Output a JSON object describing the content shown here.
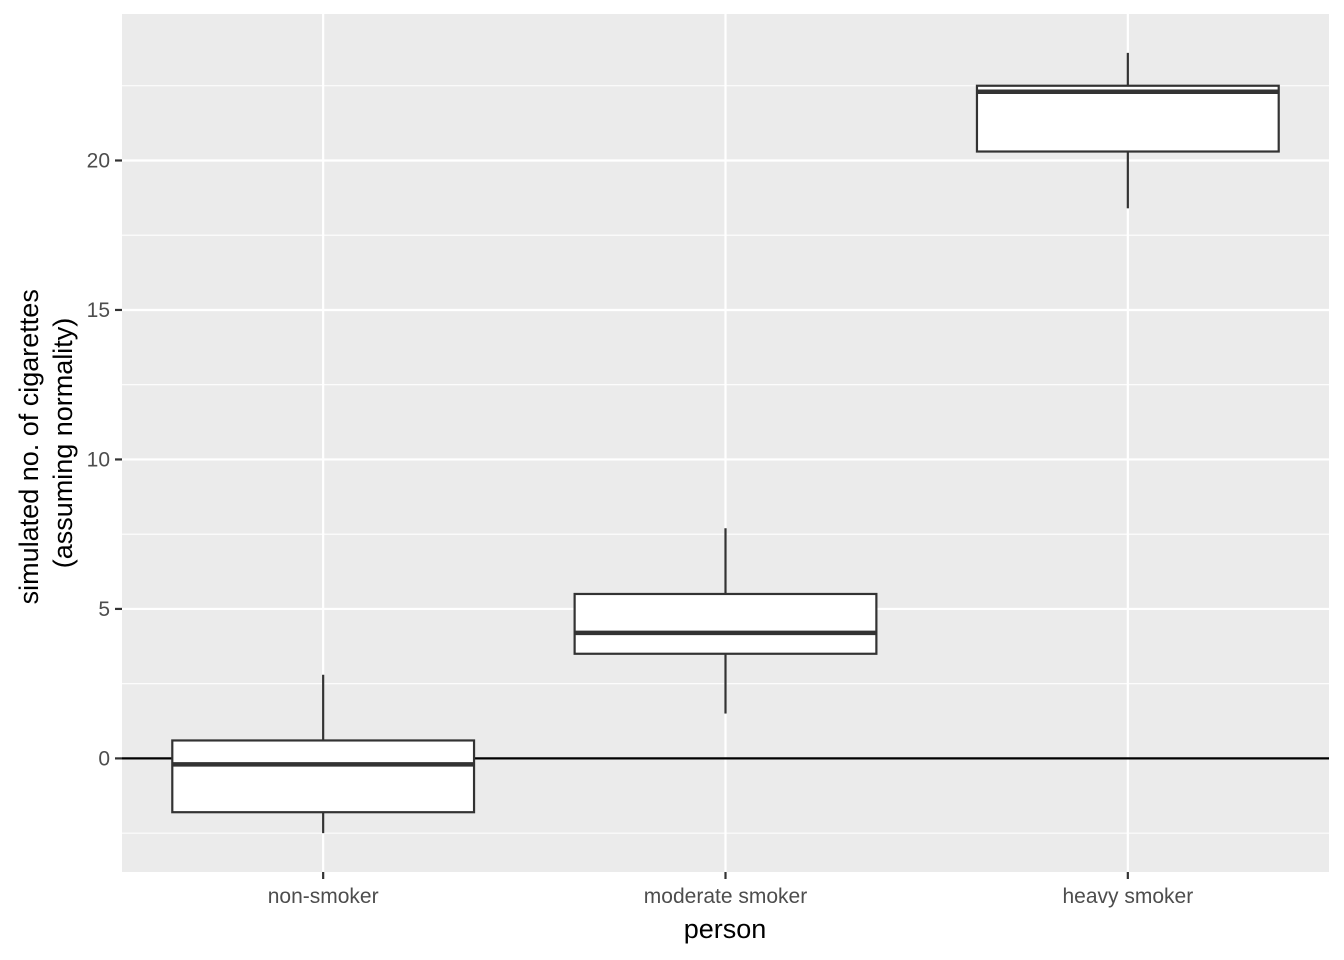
{
  "chart_data": {
    "type": "box",
    "xlabel": "person",
    "ylabel_lines": [
      "simulated no. of cigarettes",
      "(assuming normality)"
    ],
    "categories": [
      "non-smoker",
      "moderate smoker",
      "heavy smoker"
    ],
    "boxes": [
      {
        "category": "non-smoker",
        "whisker_low": -2.5,
        "q1": -1.8,
        "median": -0.2,
        "q3": 0.6,
        "whisker_high": 2.8
      },
      {
        "category": "moderate smoker",
        "whisker_low": 1.5,
        "q1": 3.5,
        "median": 4.2,
        "q3": 5.5,
        "whisker_high": 7.7
      },
      {
        "category": "heavy smoker",
        "whisker_low": 18.4,
        "q1": 20.3,
        "median": 22.3,
        "q3": 22.5,
        "whisker_high": 23.6
      }
    ],
    "ylim": [
      -3.8,
      24.9
    ],
    "yticks": [
      0,
      5,
      10,
      15,
      20
    ],
    "ytick_labels": [
      "0",
      "5",
      "10",
      "15",
      "20"
    ],
    "hline": 0,
    "grid": true,
    "colors": {
      "panel": "#ebebeb",
      "grid": "#ffffff",
      "box_fill": "#ffffff",
      "box_stroke": "#333333",
      "hline": "#000000"
    }
  }
}
